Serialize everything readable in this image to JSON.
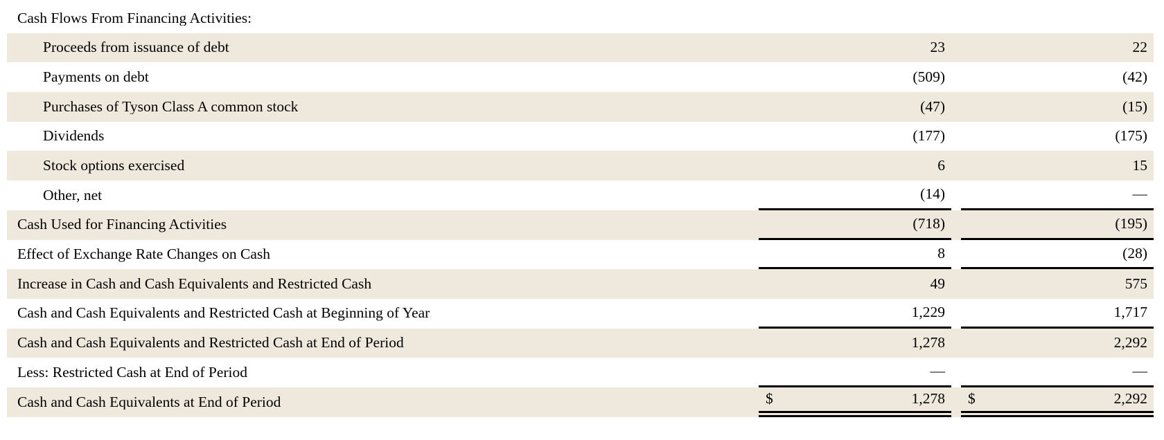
{
  "document": {
    "kind": "cash-flow-statement-excerpt"
  },
  "colors": {
    "row_shade": "#eee9dc",
    "rule": "#000000",
    "text": "#000000",
    "page_background": "#ffffff"
  },
  "table": {
    "rows": [
      {
        "label": "Cash Flows From Financing Activities:",
        "dollar1": "",
        "col1": "",
        "dollar2": "",
        "col2": "",
        "indent": false,
        "shaded": false,
        "rule": "none"
      },
      {
        "label": "Proceeds from issuance of debt",
        "dollar1": "",
        "col1": "23",
        "dollar2": "",
        "col2": "22",
        "indent": true,
        "shaded": true,
        "rule": "none"
      },
      {
        "label": "Payments on debt",
        "dollar1": "",
        "col1": "(509)",
        "dollar2": "",
        "col2": "(42)",
        "indent": true,
        "shaded": false,
        "rule": "none"
      },
      {
        "label": "Purchases of Tyson Class A common stock",
        "dollar1": "",
        "col1": "(47)",
        "dollar2": "",
        "col2": "(15)",
        "indent": true,
        "shaded": true,
        "rule": "none"
      },
      {
        "label": "Dividends",
        "dollar1": "",
        "col1": "(177)",
        "dollar2": "",
        "col2": "(175)",
        "indent": true,
        "shaded": false,
        "rule": "none"
      },
      {
        "label": "Stock options exercised",
        "dollar1": "",
        "col1": "6",
        "dollar2": "",
        "col2": "15",
        "indent": true,
        "shaded": true,
        "rule": "none"
      },
      {
        "label": "Other, net",
        "dollar1": "",
        "col1": "(14)",
        "dollar2": "",
        "col2": "—",
        "indent": true,
        "shaded": false,
        "rule": "single"
      },
      {
        "label": "Cash Used for Financing Activities",
        "dollar1": "",
        "col1": "(718)",
        "dollar2": "",
        "col2": "(195)",
        "indent": false,
        "shaded": true,
        "rule": "single"
      },
      {
        "label": "Effect of Exchange Rate Changes on Cash",
        "dollar1": "",
        "col1": "8",
        "dollar2": "",
        "col2": "(28)",
        "indent": false,
        "shaded": false,
        "rule": "single"
      },
      {
        "label": "Increase in Cash and Cash Equivalents and Restricted Cash",
        "dollar1": "",
        "col1": "49",
        "dollar2": "",
        "col2": "575",
        "indent": false,
        "shaded": true,
        "rule": "none"
      },
      {
        "label": "Cash and Cash Equivalents and Restricted Cash at Beginning of Year",
        "dollar1": "",
        "col1": "1,229",
        "dollar2": "",
        "col2": "1,717",
        "indent": false,
        "shaded": false,
        "rule": "single"
      },
      {
        "label": "Cash and Cash Equivalents and Restricted Cash at End of Period",
        "dollar1": "",
        "col1": "1,278",
        "dollar2": "",
        "col2": "2,292",
        "indent": false,
        "shaded": true,
        "rule": "none"
      },
      {
        "label": "Less: Restricted Cash at End of Period",
        "dollar1": "",
        "col1": "—",
        "dollar2": "",
        "col2": "—",
        "indent": false,
        "shaded": false,
        "rule": "single"
      },
      {
        "label": "Cash and Cash Equivalents at End of Period",
        "dollar1": "$",
        "col1": "1,278",
        "dollar2": "$",
        "col2": "2,292",
        "indent": false,
        "shaded": true,
        "rule": "double"
      }
    ]
  }
}
